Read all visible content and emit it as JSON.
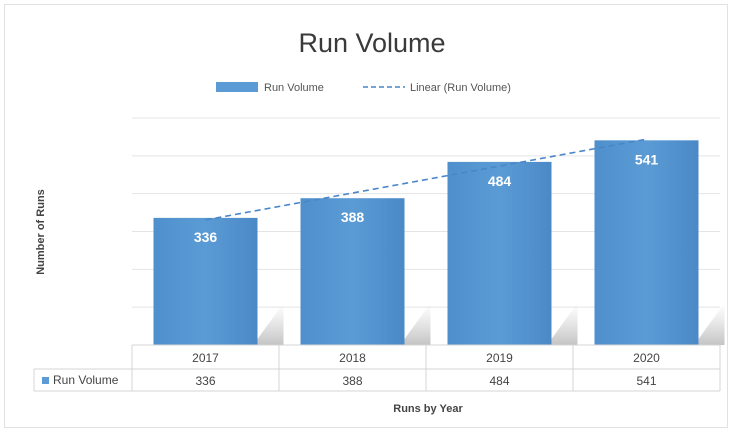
{
  "chart_data": {
    "type": "bar",
    "title": "Run Volume",
    "xlabel": "Runs by Year",
    "ylabel": "Number of Runs",
    "categories": [
      "2017",
      "2018",
      "2019",
      "2020"
    ],
    "series": [
      {
        "name": "Run Volume",
        "values": [
          336,
          388,
          484,
          541
        ],
        "color": "#5b9bd5"
      }
    ],
    "trendline": {
      "name": "Linear (Run Volume)",
      "type": "linear",
      "color": "#4a86c8",
      "style": "dashed"
    },
    "ylim": [
      0,
      600
    ],
    "grid": true,
    "legend_position": "top",
    "data_labels": true,
    "data_table": true
  }
}
